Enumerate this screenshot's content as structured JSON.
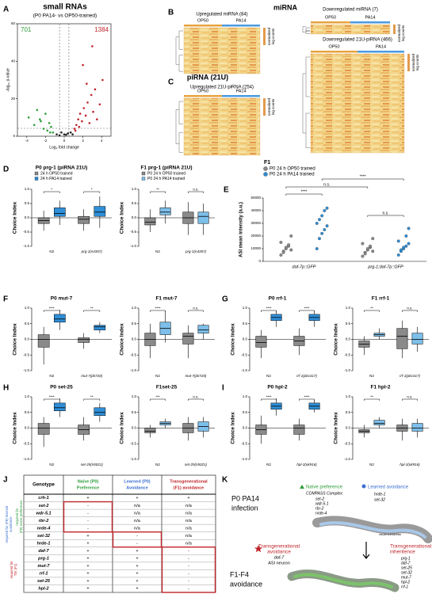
{
  "volcano": {
    "letter": "A",
    "title": "small RNAs",
    "subtitle": "(P0 PA14- vs OP50-trained)",
    "down_count": "701",
    "up_count": "1384",
    "x_label": "Log₂ fold change",
    "y_label": "-log₁₀ p-value",
    "xlim": [
      -5,
      5
    ],
    "ylim": [
      0,
      60
    ],
    "xticks": [
      -4,
      -2,
      0,
      2,
      4
    ],
    "yticks": [
      0,
      20,
      40,
      60
    ],
    "down_color": "#2e9e3a",
    "up_color": "#c0252b",
    "points_x": [
      -3.8,
      -3.2,
      -2.9,
      -2.5,
      -2.2,
      -2.0,
      -1.8,
      -1.6,
      -1.4,
      -1.2,
      -0.8,
      -0.5,
      -0.3,
      0,
      0.2,
      0.4,
      0.7,
      1.1,
      1.3,
      1.5,
      1.7,
      1.9,
      2.1,
      2.3,
      2.5,
      2.7,
      2.9,
      3.1,
      3.3,
      3.5,
      3.8,
      4.1,
      2.0,
      1.6,
      1.2,
      -1.5,
      -2.6,
      3.0,
      2.4,
      0.9
    ],
    "points_y": [
      10,
      6,
      14,
      8,
      4,
      12,
      3,
      7,
      5,
      2,
      1,
      0.5,
      2,
      1,
      0.8,
      1.5,
      2,
      4,
      6,
      9,
      12,
      8,
      15,
      11,
      18,
      7,
      22,
      13,
      25,
      9,
      17,
      30,
      38,
      5,
      3,
      2,
      9,
      48,
      28,
      1
    ]
  },
  "heatmaps": {
    "letter_b": "B",
    "letter_c": "C",
    "mirna": "miRNA",
    "pirna": "piRNA (21U)",
    "op50": "OP50",
    "pa14": "PA14",
    "scale": [
      "normalized",
      "log counts"
    ],
    "titles": [
      "Upregulated miRNA (84)",
      "Downregulated miRNA (7)",
      "Downregulated 21U-piRNA (466)",
      "Upregulated 21U-piRNA (254)"
    ]
  },
  "choice_axis": {
    "label": "Choice Index",
    "ylim": [
      -1,
      1
    ],
    "yticks": [
      {
        "value": -1,
        "label": "-1.0"
      },
      {
        "value": -0.5,
        "label": "-0.5"
      },
      {
        "value": 0,
        "label": "0.0"
      },
      {
        "value": 0.5,
        "label": "0.5"
      },
      {
        "value": 1,
        "label": "1.0"
      }
    ]
  },
  "prg1": {
    "letter": "D",
    "p0": {
      "title": "P0 prg-1 (piRNA 21U)",
      "legend": [
        "24 h OP50 trained",
        "24 h PA14 trained"
      ],
      "colors": [
        "#8a8a8a",
        "#2f8fd8"
      ],
      "groups": [
        "N2",
        "prg-1(n4357)"
      ],
      "sig": [
        "*",
        "*"
      ],
      "boxes": [
        [
          -0.45,
          -0.2,
          -0.1,
          0.0,
          0.25
        ],
        [
          -0.25,
          0.05,
          0.15,
          0.35,
          0.6
        ],
        [
          -0.45,
          -0.2,
          -0.05,
          0.05,
          0.3
        ],
        [
          -0.35,
          0.05,
          0.2,
          0.4,
          0.75
        ]
      ]
    },
    "f1": {
      "title": "F1 prg-1 (piRNA 21U)",
      "legend": [
        "P0 24 h OP50 trained",
        "P0 24 h PA14 trained"
      ],
      "colors": [
        "#8a8a8a",
        "#7dbfea"
      ],
      "groups": [
        "N2",
        "prg-1(n4357)"
      ],
      "sig": [
        "**",
        "n.s."
      ],
      "boxes": [
        [
          -0.5,
          -0.25,
          -0.15,
          0,
          0.3
        ],
        [
          -0.2,
          0.1,
          0.2,
          0.35,
          0.6
        ],
        [
          -0.6,
          -0.2,
          0,
          0.2,
          0.55
        ],
        [
          -0.6,
          -0.2,
          0.05,
          0.2,
          0.5
        ]
      ]
    }
  },
  "imaging": {
    "letter": "E",
    "legend_title": "F1",
    "legend": [
      "P0 24 h OP50 trained",
      "P0 24 h PA14 trained"
    ],
    "colors": [
      "#8a8a8a",
      "#2f8fd8"
    ],
    "y_label": "ASI mean intensity (a.u.)",
    "ylim": [
      0,
      50000
    ],
    "yticks": [
      0,
      10000,
      20000,
      30000,
      40000,
      50000
    ],
    "genotypes": [
      "daf-7p::GFP",
      "prg-1;daf-7p::GFP"
    ],
    "sig": [
      "****",
      "n.s.",
      "n.s.",
      "****"
    ],
    "points": [
      [
        5000,
        8000,
        10000,
        12000,
        9000,
        15000,
        7000,
        11000,
        13000,
        20000
      ],
      [
        10000,
        18000,
        22000,
        25000,
        28000,
        30000,
        33000,
        36000,
        40000,
        42000
      ],
      [
        4000,
        7000,
        9000,
        11000,
        8000,
        14000,
        6000,
        10000,
        12000,
        18000
      ],
      [
        5000,
        8000,
        10000,
        12000,
        14000,
        16000,
        9000,
        11000,
        20000,
        26000
      ]
    ]
  },
  "mut7": {
    "letter": "F",
    "p0": {
      "title": "P0 mut-7",
      "colors": [
        "#8a8a8a",
        "#2f8fd8"
      ],
      "groups": [
        "N2",
        "mut-7(pk720)"
      ],
      "sig": [
        "****",
        "**"
      ],
      "boxes": [
        [
          -0.8,
          -0.25,
          0,
          0.15,
          0.4
        ],
        [
          0.3,
          0.55,
          0.65,
          0.8,
          0.95
        ],
        [
          -0.3,
          -0.1,
          0,
          0.05,
          0.2
        ],
        [
          0.2,
          0.3,
          0.4,
          0.45,
          0.55
        ]
      ]
    },
    "f1": {
      "title": "F1 mut-7",
      "colors": [
        "#8a8a8a",
        "#7dbfea"
      ],
      "groups": [
        "N2",
        "mut-7(pk720)"
      ],
      "sig": [
        "****",
        "n.s."
      ],
      "boxes": [
        [
          -0.6,
          -0.2,
          0,
          0.2,
          0.5
        ],
        [
          -0.1,
          0.15,
          0.35,
          0.55,
          0.9
        ],
        [
          -0.6,
          -0.15,
          0.1,
          0.2,
          0.45
        ],
        [
          0,
          0.2,
          0.3,
          0.45,
          0.5
        ]
      ]
    }
  },
  "rrf1": {
    "letter": "G",
    "p0": {
      "title": "P0 rrf-1",
      "colors": [
        "#8a8a8a",
        "#2f8fd8"
      ],
      "groups": [
        "N2",
        "rrf-1(pk1417)"
      ],
      "sig": [
        "****",
        "****"
      ],
      "boxes": [
        [
          -0.6,
          -0.25,
          -0.1,
          0.1,
          0.3
        ],
        [
          0.4,
          0.6,
          0.7,
          0.8,
          0.9
        ],
        [
          -0.5,
          -0.2,
          -0.05,
          0.1,
          0.35
        ],
        [
          0.4,
          0.6,
          0.7,
          0.8,
          0.9
        ]
      ]
    },
    "f1": {
      "title": "F1 rrf-1",
      "colors": [
        "#8a8a8a",
        "#7dbfea"
      ],
      "groups": [
        "N2",
        "rrf-1(pk1417)"
      ],
      "sig": [
        "**",
        "n.s."
      ],
      "boxes": [
        [
          -0.5,
          -0.25,
          -0.15,
          -0.05,
          0.1
        ],
        [
          0,
          0.1,
          0.15,
          0.2,
          0.35
        ],
        [
          -0.6,
          -0.3,
          0.1,
          0.35,
          0.6
        ],
        [
          -0.4,
          -0.15,
          0,
          0.2,
          0.4
        ]
      ]
    }
  },
  "set25": {
    "letter": "H",
    "p0": {
      "title": "P0 set-25",
      "colors": [
        "#8a8a8a",
        "#2f8fd8"
      ],
      "groups": [
        "N2",
        "set-25(n5021)"
      ],
      "sig": [
        "****",
        "**"
      ],
      "boxes": [
        [
          -0.6,
          -0.2,
          0,
          0.15,
          0.35
        ],
        [
          0.35,
          0.55,
          0.65,
          0.8,
          0.95
        ],
        [
          -0.4,
          -0.2,
          -0.05,
          0.1,
          0.35
        ],
        [
          0.2,
          0.4,
          0.5,
          0.65,
          0.8
        ]
      ]
    },
    "f1": {
      "title": "F1set-25",
      "colors": [
        "#8a8a8a",
        "#7dbfea"
      ],
      "groups": [
        "N2",
        "set-25(n5021)"
      ],
      "sig": [
        "***",
        "n.s."
      ],
      "boxes": [
        [
          -0.3,
          -0.15,
          -0.1,
          0,
          0.1
        ],
        [
          0,
          0.1,
          0.15,
          0.2,
          0.3
        ],
        [
          -0.4,
          -0.15,
          0,
          0.15,
          0.35
        ],
        [
          -0.3,
          -0.1,
          0.05,
          0.2,
          0.35
        ]
      ]
    }
  },
  "hpl2": {
    "letter": "I",
    "p0": {
      "title": "P0 hpl-2",
      "colors": [
        "#8a8a8a",
        "#2f8fd8"
      ],
      "groups": [
        "N2",
        "hpl-2(ok916)"
      ],
      "sig": [
        "****",
        "****"
      ],
      "boxes": [
        [
          -0.5,
          -0.2,
          -0.05,
          0.1,
          0.4
        ],
        [
          0.4,
          0.6,
          0.7,
          0.8,
          0.95
        ],
        [
          -0.4,
          -0.2,
          0,
          0.1,
          0.3
        ],
        [
          0.5,
          0.6,
          0.7,
          0.8,
          0.9
        ]
      ]
    },
    "f1": {
      "title": "F1 hpl-2",
      "colors": [
        "#8a8a8a",
        "#7dbfea"
      ],
      "groups": [
        "N2",
        "hpl-2(ok916)"
      ],
      "sig": [
        "**",
        "n.s."
      ],
      "boxes": [
        [
          -0.3,
          -0.15,
          -0.1,
          -0.05,
          0.1
        ],
        [
          0,
          0.1,
          0.15,
          0.25,
          0.35
        ],
        [
          -0.4,
          -0.1,
          0,
          0.1,
          0.3
        ],
        [
          -0.3,
          -0.1,
          0,
          0.15,
          0.3
        ]
      ]
    }
  },
  "table": {
    "letter": "J",
    "header": [
      "Genotype",
      [
        "Naïve (P0)",
        "Preference"
      ],
      [
        "Learned (P0)",
        "Avoidance"
      ],
      [
        "Transgenerational",
        "(F1) avoidance"
      ]
    ],
    "header_colors": [
      "#000000",
      "#2e9e3a",
      "#3c6fd0",
      "#c0252b"
    ],
    "rows": [
      [
        "crh-1",
        "+",
        "+",
        "+"
      ],
      [
        "set-2",
        "-",
        "n/a",
        "n/a"
      ],
      [
        "wdr-5.1",
        "-",
        "n/a",
        "n/a"
      ],
      [
        "rbr-2",
        "-",
        "n/a",
        "n/a"
      ],
      [
        "nrde-4",
        "-",
        "n/a",
        "n/a"
      ],
      [
        "set-32",
        "+",
        "-",
        "n/a"
      ],
      [
        "hrde-1",
        "+",
        "-",
        "n/a"
      ],
      [
        "daf-7",
        "+",
        "+",
        "-"
      ],
      [
        "prg-1",
        "+",
        "+",
        "-"
      ],
      [
        "mut-7",
        "+",
        "+",
        "-"
      ],
      [
        "rrf-1",
        "+",
        "+",
        "-"
      ],
      [
        "set-25",
        "+",
        "+",
        "-"
      ],
      [
        "hpl-2",
        "+",
        "+",
        "-"
      ]
    ],
    "side": [
      {
        "lines": [
          "required for",
          "(P0) naïve preference"
        ],
        "color": "#2e9e3a"
      },
      {
        "lines": [
          "required for (P0) learned",
          "avoidance"
        ],
        "color": "#3c6fd0"
      },
      {
        "lines": [
          "required for",
          "TEI (F1)"
        ],
        "color": "#c0252b"
      }
    ]
  },
  "model": {
    "letter": "K",
    "infection": [
      "P0 PA14",
      "infection"
    ],
    "naive": "Naïve preference",
    "learned": "Learned avoidance",
    "compass": "COMPASS Complex:",
    "compass_genes": [
      "set-2",
      "wdr-5.1",
      "rbr-2",
      "nrde-4"
    ],
    "learned_genes": [
      "hrde-1",
      "set-32"
    ],
    "stress": "virulence/stress",
    "inheritance": [
      "Transgenerational",
      "inheritence"
    ],
    "inheritance_genes": [
      "prg-1",
      "daf-7",
      "set-25",
      "set-32",
      "mut-7",
      "hpl-2",
      "rrf-1"
    ],
    "avoidance": [
      "F1-F4",
      "avoidance"
    ],
    "trans_avoid": [
      "Transgenerational",
      "avoidance"
    ],
    "trans_gene": "daf-7",
    "neuron": "ASI neuron"
  }
}
